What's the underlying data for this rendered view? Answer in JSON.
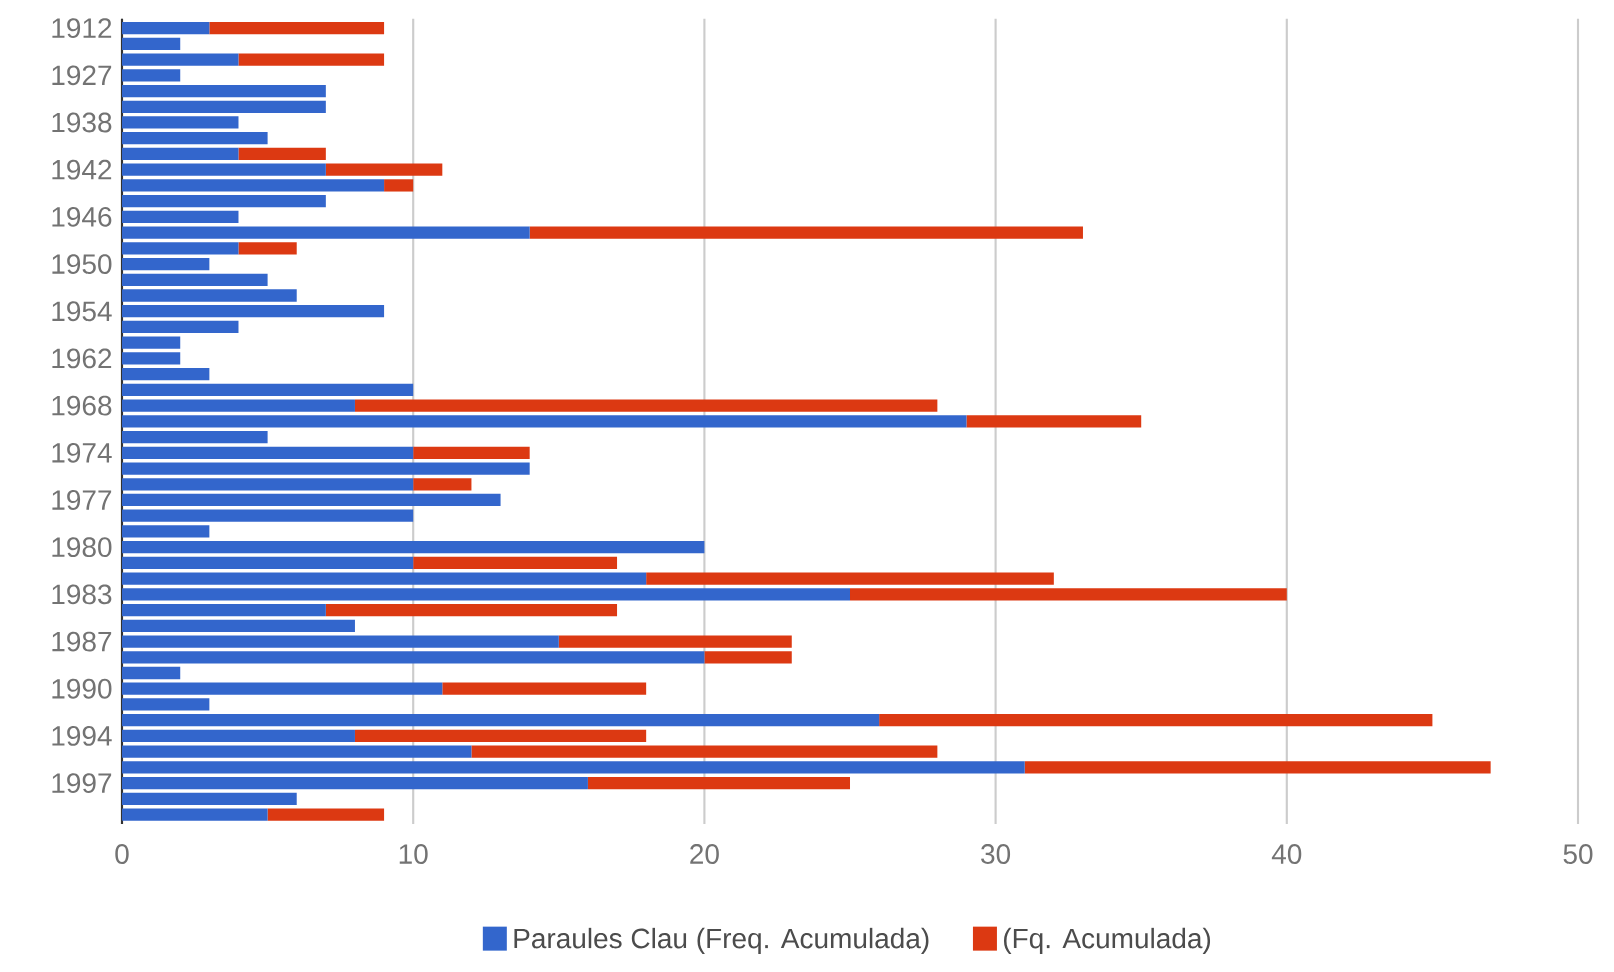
{
  "chart_data": {
    "type": "bar",
    "orientation": "horizontal",
    "stacked": true,
    "categories": [
      "1912",
      null,
      null,
      "1927",
      null,
      null,
      "1938",
      null,
      null,
      "1942",
      null,
      null,
      "1946",
      null,
      null,
      "1950",
      null,
      null,
      "1954",
      null,
      null,
      "1962",
      null,
      null,
      "1968",
      null,
      null,
      "1974",
      null,
      null,
      "1977",
      null,
      null,
      "1980",
      null,
      null,
      "1983",
      null,
      null,
      "1987",
      null,
      null,
      "1990",
      null,
      null,
      "1994",
      null,
      null,
      "1997",
      null,
      null
    ],
    "series": [
      {
        "name": "Paraules Clau (Freq. Acumulada)",
        "color": "#3366cc",
        "values": [
          3,
          2,
          4,
          2,
          7,
          7,
          4,
          5,
          4,
          7,
          9,
          7,
          4,
          14,
          4,
          3,
          5,
          6,
          9,
          4,
          2,
          2,
          3,
          10,
          8,
          29,
          5,
          10,
          14,
          10,
          13,
          10,
          3,
          20,
          10,
          18,
          25,
          7,
          8,
          15,
          20,
          2,
          11,
          3,
          26,
          8,
          12,
          31,
          16,
          6,
          5
        ]
      },
      {
        "name": "(Fq. Acumulada)",
        "color": "#dc3912",
        "values": [
          6,
          0,
          5,
          0,
          0,
          0,
          0,
          0,
          3,
          4,
          1,
          0,
          0,
          19,
          2,
          0,
          0,
          0,
          0,
          0,
          0,
          0,
          0,
          0,
          20,
          6,
          0,
          4,
          0,
          2,
          0,
          0,
          0,
          0,
          7,
          14,
          15,
          10,
          0,
          8,
          3,
          0,
          7,
          0,
          19,
          10,
          16,
          16,
          9,
          0,
          4
        ]
      }
    ],
    "xlim": [
      0,
      50
    ],
    "xticks": [
      0,
      10,
      20,
      30,
      40,
      50
    ],
    "grid": "x",
    "legend": "bottom"
  }
}
